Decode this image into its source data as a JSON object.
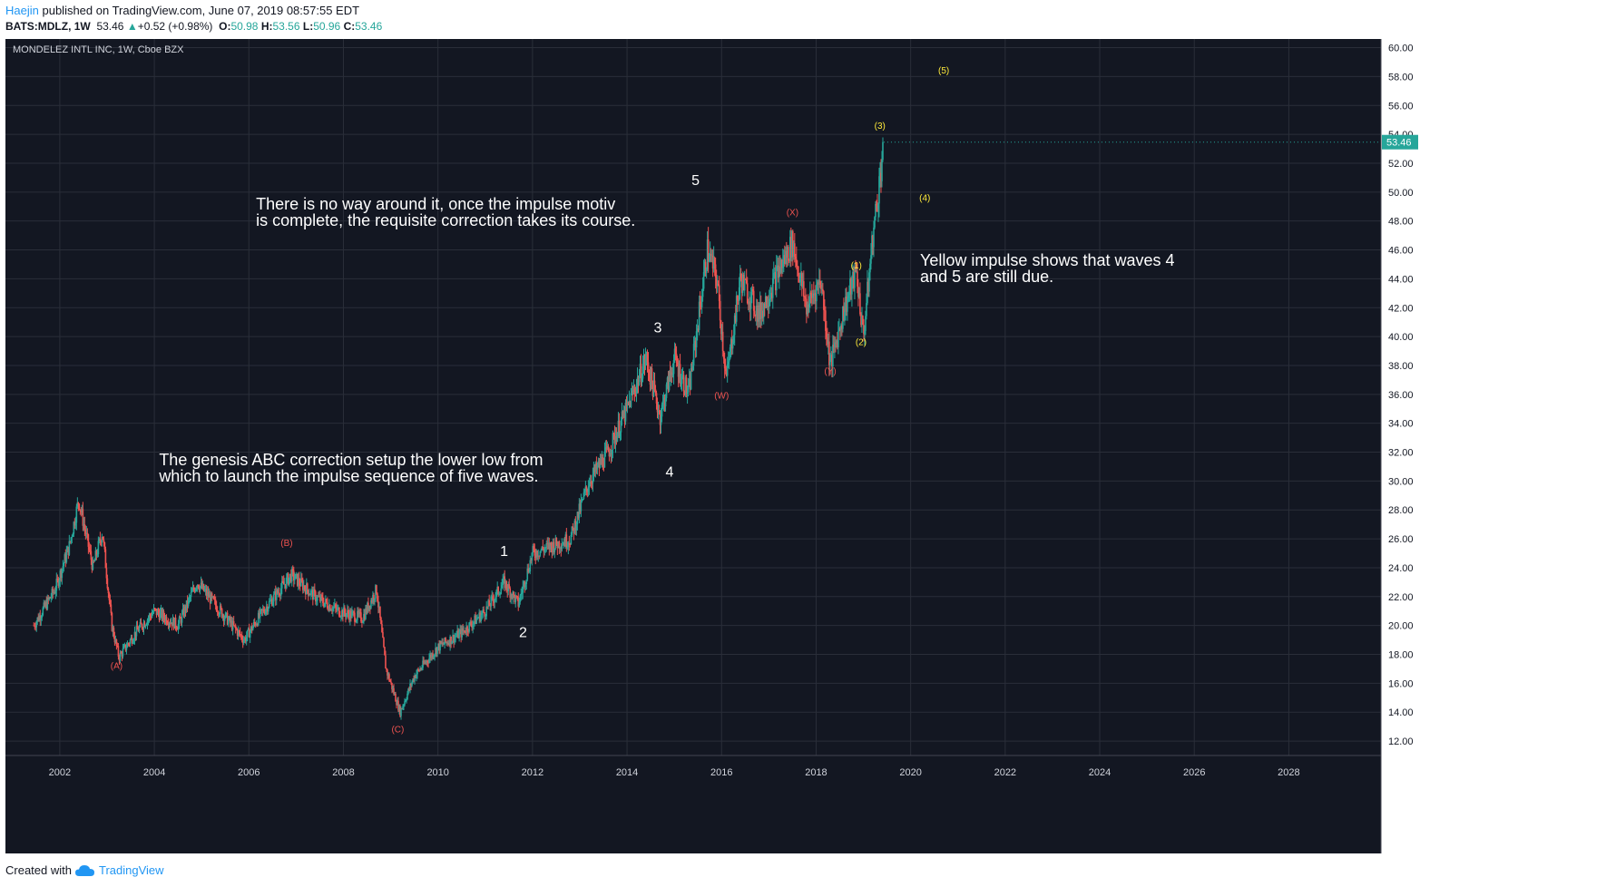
{
  "header": {
    "author": "Haejin",
    "published": "published on TradingView.com, June 07, 2019 08:57:55 EDT",
    "symbol_line": "BATS:MDLZ, 1W",
    "last_price": "53.46",
    "change": "+0.52 (+0.98%)",
    "o_label": "O:",
    "o_val": "50.98",
    "h_label": "H:",
    "h_val": "53.56",
    "l_label": "L:",
    "l_val": "50.96",
    "c_label": "C:",
    "c_val": "53.46"
  },
  "footer": {
    "created": "Created with",
    "brand": "TradingView"
  },
  "chart_data": {
    "type": "candlestick",
    "title": "MONDELEZ INTL INC, 1W, Cboe BZX",
    "x_range": [
      2000.85,
      2029.95
    ],
    "ylim": [
      11.0,
      60.6
    ],
    "y_ticks": [
      12,
      14,
      16,
      18,
      20,
      22,
      24,
      26,
      28,
      30,
      32,
      34,
      36,
      38,
      40,
      42,
      44,
      46,
      48,
      50,
      52,
      54,
      56,
      58,
      60
    ],
    "x_ticks": [
      2002,
      2004,
      2006,
      2008,
      2010,
      2012,
      2014,
      2016,
      2018,
      2020,
      2022,
      2024,
      2026,
      2028
    ],
    "last_price": 53.46,
    "price_path": [
      [
        2001.45,
        20.0
      ],
      [
        2001.9,
        22.5
      ],
      [
        2002.2,
        25.5
      ],
      [
        2002.4,
        28.7
      ],
      [
        2002.7,
        24.0
      ],
      [
        2002.9,
        26.5
      ],
      [
        2003.1,
        20.0
      ],
      [
        2003.25,
        17.8
      ],
      [
        2003.6,
        19.5
      ],
      [
        2004.0,
        21.0
      ],
      [
        2004.5,
        20.0
      ],
      [
        2004.9,
        23.0
      ],
      [
        2005.4,
        21.0
      ],
      [
        2005.9,
        19.0
      ],
      [
        2006.3,
        21.0
      ],
      [
        2006.9,
        23.5
      ],
      [
        2007.4,
        22.0
      ],
      [
        2007.9,
        21.0
      ],
      [
        2008.4,
        20.5
      ],
      [
        2008.7,
        22.5
      ],
      [
        2008.9,
        17.0
      ],
      [
        2009.2,
        14.0
      ],
      [
        2009.5,
        16.5
      ],
      [
        2010.0,
        18.5
      ],
      [
        2010.5,
        19.5
      ],
      [
        2011.0,
        21.0
      ],
      [
        2011.4,
        23.0
      ],
      [
        2011.7,
        21.5
      ],
      [
        2012.0,
        25.0
      ],
      [
        2012.4,
        25.5
      ],
      [
        2012.8,
        26.0
      ],
      [
        2013.2,
        30.0
      ],
      [
        2013.6,
        32.0
      ],
      [
        2014.0,
        35.0
      ],
      [
        2014.4,
        38.5
      ],
      [
        2014.7,
        34.5
      ],
      [
        2015.0,
        38.5
      ],
      [
        2015.3,
        36.0
      ],
      [
        2015.7,
        46.0
      ],
      [
        2015.9,
        44.0
      ],
      [
        2016.1,
        37.0
      ],
      [
        2016.4,
        44.0
      ],
      [
        2016.8,
        41.5
      ],
      [
        2017.2,
        44.5
      ],
      [
        2017.5,
        46.5
      ],
      [
        2017.8,
        42.0
      ],
      [
        2018.1,
        44.0
      ],
      [
        2018.3,
        38.0
      ],
      [
        2018.6,
        42.0
      ],
      [
        2018.85,
        44.5
      ],
      [
        2019.0,
        40.0
      ],
      [
        2019.2,
        47.0
      ],
      [
        2019.35,
        51.0
      ],
      [
        2019.43,
        53.46
      ]
    ],
    "wave_labels": [
      {
        "text": "(A)",
        "x": 2003.2,
        "y": 17.0,
        "color": "#ef5350",
        "size": 10
      },
      {
        "text": "(B)",
        "x": 2006.8,
        "y": 25.5,
        "color": "#ef5350",
        "size": 10
      },
      {
        "text": "(C)",
        "x": 2009.15,
        "y": 12.6,
        "color": "#ef5350",
        "size": 10
      },
      {
        "text": "1",
        "x": 2011.4,
        "y": 24.8,
        "color": "#ffffff",
        "size": 16
      },
      {
        "text": "2",
        "x": 2011.8,
        "y": 19.2,
        "color": "#ffffff",
        "size": 16
      },
      {
        "text": "3",
        "x": 2014.65,
        "y": 40.3,
        "color": "#ffffff",
        "size": 16
      },
      {
        "text": "4",
        "x": 2014.9,
        "y": 30.3,
        "color": "#ffffff",
        "size": 16
      },
      {
        "text": "5",
        "x": 2015.45,
        "y": 50.5,
        "color": "#ffffff",
        "size": 16
      },
      {
        "text": "(W)",
        "x": 2016.0,
        "y": 35.7,
        "color": "#ef5350",
        "size": 10
      },
      {
        "text": "(X)",
        "x": 2017.5,
        "y": 48.4,
        "color": "#ef5350",
        "size": 10
      },
      {
        "text": "(Y)",
        "x": 2018.3,
        "y": 37.4,
        "color": "#ef5350",
        "size": 10
      },
      {
        "text": "(1)",
        "x": 2018.85,
        "y": 44.7,
        "color": "#ffeb3b",
        "size": 10
      },
      {
        "text": "(2)",
        "x": 2018.95,
        "y": 39.4,
        "color": "#ffeb3b",
        "size": 10
      },
      {
        "text": "(3)",
        "x": 2019.35,
        "y": 54.4,
        "color": "#ffeb3b",
        "size": 10
      },
      {
        "text": "(4)",
        "x": 2020.3,
        "y": 49.4,
        "color": "#ffeb3b",
        "size": 10
      },
      {
        "text": "(5)",
        "x": 2020.7,
        "y": 58.2,
        "color": "#ffeb3b",
        "size": 10
      }
    ],
    "annotations": [
      {
        "lines": [
          "There is no way around it, once the impulse motiv",
          "is complete, the requisite correction takes its course."
        ],
        "x": 2006.15,
        "y": 48.8
      },
      {
        "lines": [
          "The genesis ABC correction setup the lower low from",
          "which to launch the impulse sequence of five waves."
        ],
        "x": 2004.1,
        "y": 31.1
      },
      {
        "lines": [
          "Yellow impulse shows that waves 4",
          "and 5 are still due."
        ],
        "x": 2020.2,
        "y": 44.9
      }
    ],
    "colors": {
      "background": "#131722",
      "grid": "#2a2e39",
      "up": "#26a69a",
      "down": "#ef5350",
      "text": "#d1d4dc",
      "price_tag": "#26a69a"
    }
  }
}
